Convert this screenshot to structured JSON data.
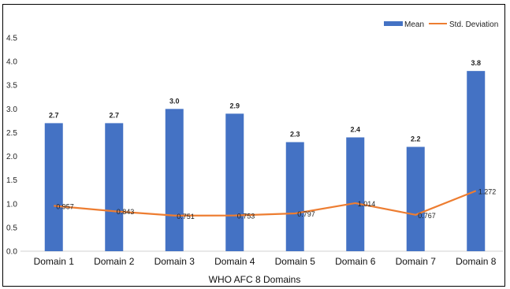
{
  "chart_data": {
    "type": "bar",
    "categories": [
      "Domain 1",
      "Domain 2",
      "Domain 3",
      "Domain 4",
      "Domain 5",
      "Domain 6",
      "Domain 7",
      "Domain 8"
    ],
    "series": [
      {
        "name": "Mean",
        "type": "bar",
        "color": "#4472C4",
        "values": [
          2.7,
          2.7,
          3.0,
          2.9,
          2.3,
          2.4,
          2.2,
          3.8
        ],
        "labels": [
          "2.7",
          "2.7",
          "3.0",
          "2.9",
          "2.3",
          "2.4",
          "2.2",
          "3.8"
        ]
      },
      {
        "name": "Std. Deviation",
        "type": "line",
        "color": "#ED7D31",
        "values": [
          0.957,
          0.843,
          0.751,
          0.753,
          0.797,
          1.014,
          0.767,
          1.272
        ],
        "labels": [
          "0.957",
          "0.843",
          "0.751",
          "0.753",
          "0.797",
          "1.014",
          "0.767",
          "1.272"
        ]
      }
    ],
    "xlabel": "WHO AFC 8 Domains",
    "ylabel": "",
    "ylim": [
      0,
      4.5
    ],
    "yticks": [
      "0.0",
      "0.5",
      "1.0",
      "1.5",
      "2.0",
      "2.5",
      "3.0",
      "3.5",
      "4.0",
      "4.5"
    ],
    "grid": false,
    "legend": "top-right"
  }
}
